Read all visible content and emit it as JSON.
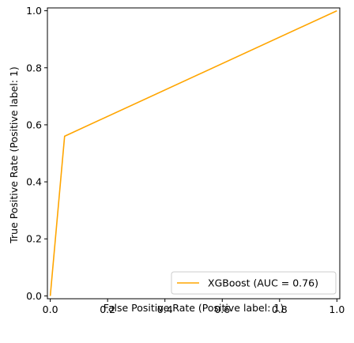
{
  "chart_data": {
    "type": "line",
    "xlabel": "False Positive Rate (Positive label: 1)",
    "ylabel": "True Positive Rate (Positive label: 1)",
    "xlim": [
      -0.01,
      1.01
    ],
    "ylim": [
      -0.01,
      1.01
    ],
    "x_ticks": [
      "0.0",
      "0.2",
      "0.4",
      "0.6",
      "0.8",
      "1.0"
    ],
    "y_ticks": [
      "0.0",
      "0.2",
      "0.4",
      "0.6",
      "0.8",
      "1.0"
    ],
    "grid": false,
    "legend_position": "lower-right",
    "series": [
      {
        "name": "XGBoost (AUC = 0.76)",
        "color": "#ffa500",
        "x": [
          0.0,
          0.05,
          1.0
        ],
        "y": [
          0.0,
          0.56,
          1.0
        ]
      }
    ]
  }
}
